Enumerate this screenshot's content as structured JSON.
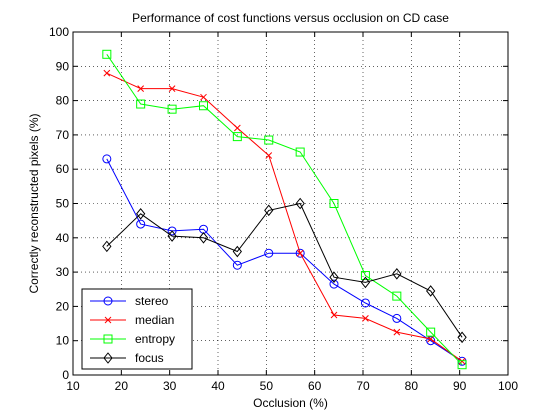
{
  "chart_data": {
    "type": "line",
    "title": "Performance of cost functions versus occlusion on CD case",
    "xlabel": "Occlusion (%)",
    "ylabel": "Correctly reconstructed pixels (%)",
    "xlim": [
      10,
      100
    ],
    "ylim": [
      0,
      100
    ],
    "xticks": [
      10,
      20,
      30,
      40,
      50,
      60,
      70,
      80,
      90,
      100
    ],
    "yticks": [
      0,
      10,
      20,
      30,
      40,
      50,
      60,
      70,
      80,
      90,
      100
    ],
    "grid": "dotted",
    "legend_position": "bottom-left",
    "x": [
      17,
      24,
      30.5,
      37,
      44,
      50.5,
      57,
      64,
      70.5,
      77,
      84,
      90.5
    ],
    "series": [
      {
        "name": "stereo",
        "color": "#0000ff",
        "marker": "circle",
        "values": [
          63,
          44,
          42,
          42.5,
          32,
          35.5,
          35.5,
          26.5,
          21,
          16.5,
          10,
          4
        ]
      },
      {
        "name": "median",
        "color": "#ff0000",
        "marker": "x",
        "values": [
          88,
          83.5,
          83.5,
          81,
          72,
          64,
          35.5,
          17.5,
          16.5,
          12.5,
          10.5,
          4
        ]
      },
      {
        "name": "entropy",
        "color": "#00ff00",
        "marker": "square",
        "values": [
          93.5,
          79,
          77.5,
          78.5,
          69.5,
          68.5,
          65,
          50,
          29,
          23,
          12.5,
          3
        ]
      },
      {
        "name": "focus",
        "color": "#000000",
        "marker": "diamond",
        "values": [
          37.5,
          47,
          40.5,
          40,
          36,
          48,
          50,
          28.5,
          27,
          29.5,
          24.5,
          11
        ]
      }
    ]
  }
}
